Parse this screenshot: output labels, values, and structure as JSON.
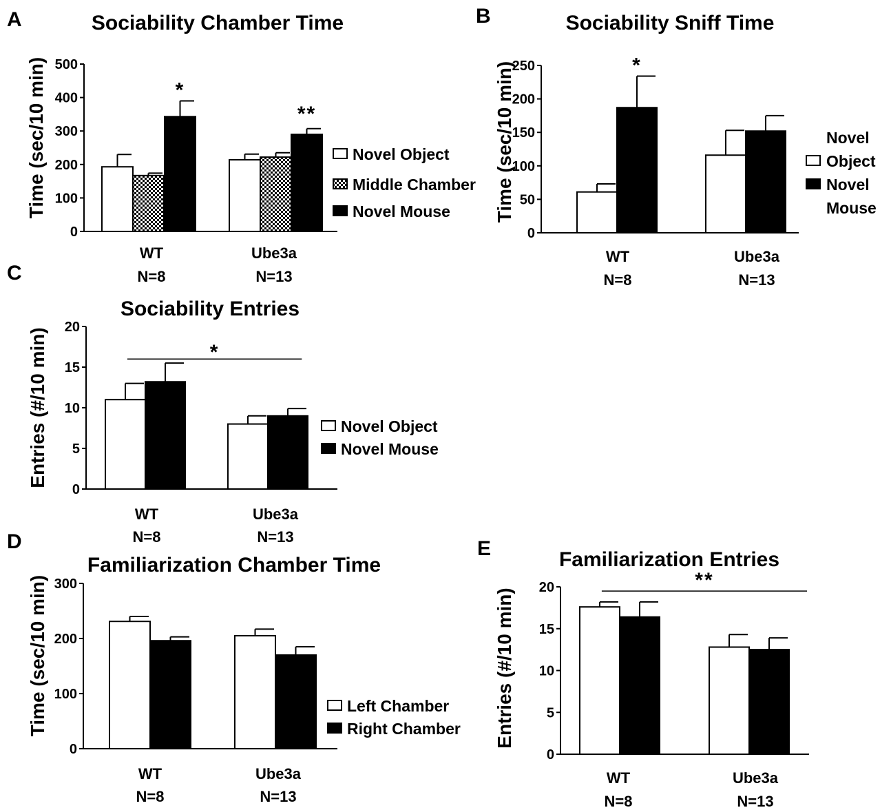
{
  "colors": {
    "background": "#ffffff",
    "ink": "#000000",
    "open_bar": "#ffffff",
    "filled_bar": "#000000"
  },
  "chart_data": [
    {
      "id": "A",
      "panel_label": "A",
      "type": "bar",
      "title": "Sociability Chamber Time",
      "ylabel": "Time (sec/10 min)",
      "ylim": [
        0,
        500
      ],
      "yticks": [
        0,
        100,
        200,
        300,
        400,
        500
      ],
      "grid": false,
      "legend_position": "right",
      "categories": [
        "WT",
        "Ube3a"
      ],
      "category_n": [
        "N=8",
        "N=13"
      ],
      "series": [
        {
          "name": "Novel Object",
          "pattern": "open",
          "values": [
            193,
            214
          ],
          "errors": [
            37,
            17
          ]
        },
        {
          "name": "Middle Chamber",
          "pattern": "checker",
          "values": [
            167,
            222
          ],
          "errors": [
            7,
            13
          ]
        },
        {
          "name": "Novel Mouse",
          "pattern": "filled",
          "values": [
            343,
            290
          ],
          "errors": [
            47,
            17
          ]
        }
      ],
      "significance": [
        {
          "label": "*",
          "category_index": 0,
          "series_index": 2
        },
        {
          "label": "**",
          "category_index": 1,
          "series_index": 2
        }
      ]
    },
    {
      "id": "B",
      "panel_label": "B",
      "type": "bar",
      "title": "Sociability Sniff Time",
      "ylabel": "Time (sec/10 min)",
      "ylim": [
        0,
        250
      ],
      "yticks": [
        0,
        50,
        100,
        150,
        200,
        250
      ],
      "grid": false,
      "legend_position": "right",
      "categories": [
        "WT",
        "Ube3a"
      ],
      "category_n": [
        "N=8",
        "N=13"
      ],
      "series": [
        {
          "name": "Novel Object",
          "legend_lines": [
            "Novel",
            "Object"
          ],
          "pattern": "open",
          "values": [
            61,
            116
          ],
          "errors": [
            12,
            37
          ]
        },
        {
          "name": "Novel Mouse",
          "legend_lines": [
            "Novel",
            "Mouse"
          ],
          "pattern": "filled",
          "values": [
            187,
            152
          ],
          "errors": [
            47,
            23
          ]
        }
      ],
      "significance": [
        {
          "label": "*",
          "category_index": 0,
          "series_index": 1
        }
      ]
    },
    {
      "id": "C",
      "panel_label": "C",
      "type": "bar",
      "title": "Sociability Entries",
      "ylabel": "Entries (#/10 min)",
      "ylim": [
        0,
        20
      ],
      "yticks": [
        0,
        5,
        10,
        15,
        20
      ],
      "grid": false,
      "legend_position": "right",
      "categories": [
        "WT",
        "Ube3a"
      ],
      "category_n": [
        "N=8",
        "N=13"
      ],
      "series": [
        {
          "name": "Novel Object",
          "pattern": "open",
          "values": [
            11,
            8
          ],
          "errors": [
            2,
            1
          ]
        },
        {
          "name": "Novel Mouse",
          "pattern": "filled",
          "values": [
            13.2,
            9
          ],
          "errors": [
            2.3,
            0.9
          ]
        }
      ],
      "significance": [
        {
          "label": "*",
          "bracket": true,
          "level": 16
        }
      ]
    },
    {
      "id": "D",
      "panel_label": "D",
      "type": "bar",
      "title": "Familiarization Chamber Time",
      "ylabel": "Time (sec/10 min)",
      "ylim": [
        0,
        300
      ],
      "yticks": [
        0,
        100,
        200,
        300
      ],
      "grid": false,
      "legend_position": "right",
      "categories": [
        "WT",
        "Ube3a"
      ],
      "category_n": [
        "N=8",
        "N=13"
      ],
      "series": [
        {
          "name": "Left Chamber",
          "pattern": "open",
          "values": [
            231,
            205
          ],
          "errors": [
            9,
            12
          ]
        },
        {
          "name": "Right Chamber",
          "pattern": "filled",
          "values": [
            196,
            170
          ],
          "errors": [
            7,
            15
          ]
        }
      ],
      "significance": []
    },
    {
      "id": "E",
      "panel_label": "E",
      "type": "bar",
      "title": "Familiarization Entries",
      "ylabel": "Entries (#/10 min)",
      "ylim": [
        0,
        20
      ],
      "yticks": [
        0,
        5,
        10,
        15,
        20
      ],
      "grid": false,
      "legend_position": "none",
      "categories": [
        "WT",
        "Ube3a"
      ],
      "category_n": [
        "N=8",
        "N=13"
      ],
      "series": [
        {
          "name": "",
          "pattern": "open",
          "values": [
            17.6,
            12.8
          ],
          "errors": [
            0.6,
            1.5
          ]
        },
        {
          "name": "",
          "pattern": "filled",
          "values": [
            16.4,
            12.5
          ],
          "errors": [
            1.8,
            1.4
          ]
        }
      ],
      "significance": [
        {
          "label": "**",
          "bracket": true,
          "level": 19.5
        }
      ]
    }
  ]
}
